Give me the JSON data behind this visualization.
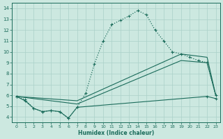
{
  "xlabel": "Humidex (Indice chaleur)",
  "background_color": "#cce8e0",
  "grid_color": "#aad0c8",
  "line_color": "#1a6b5a",
  "xlim": [
    -0.5,
    23.5
  ],
  "ylim": [
    3.5,
    14.5
  ],
  "xticks": [
    0,
    1,
    2,
    3,
    4,
    5,
    6,
    7,
    8,
    9,
    10,
    11,
    12,
    13,
    14,
    15,
    16,
    17,
    18,
    19,
    20,
    21,
    22,
    23
  ],
  "yticks": [
    4,
    5,
    6,
    7,
    8,
    9,
    10,
    11,
    12,
    13,
    14
  ],
  "curve_main_x": [
    0,
    1,
    2,
    3,
    4,
    5,
    6,
    7,
    8,
    9,
    10,
    11,
    12,
    13,
    14,
    15,
    16,
    17,
    18,
    19,
    20,
    21,
    22,
    23
  ],
  "curve_main_y": [
    5.9,
    5.6,
    4.8,
    4.5,
    4.6,
    4.5,
    3.9,
    4.9,
    6.2,
    8.9,
    11.0,
    12.5,
    12.9,
    13.3,
    13.8,
    13.4,
    12.0,
    11.0,
    10.0,
    9.8,
    9.5,
    9.2,
    9.0,
    6.0
  ],
  "curve_diag1_x": [
    0,
    7,
    19,
    22,
    23
  ],
  "curve_diag1_y": [
    5.9,
    5.5,
    9.8,
    9.5,
    6.0
  ],
  "curve_diag2_x": [
    0,
    7,
    19,
    22,
    23
  ],
  "curve_diag2_y": [
    5.9,
    5.2,
    9.2,
    9.0,
    6.0
  ],
  "curve_flat_x": [
    0,
    1,
    2,
    3,
    4,
    5,
    6,
    7,
    22,
    23
  ],
  "curve_flat_y": [
    5.9,
    5.5,
    4.8,
    4.5,
    4.6,
    4.5,
    3.9,
    4.9,
    5.9,
    5.7
  ]
}
